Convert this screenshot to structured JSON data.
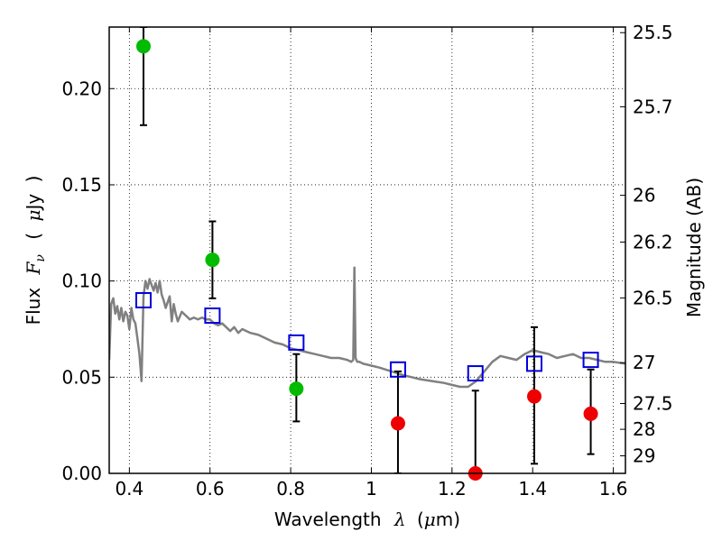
{
  "chart_data": {
    "type": "scatter",
    "title": "",
    "xlabel": {
      "text": "Wavelength",
      "symbol": "λ",
      "unit_prefix": "(",
      "unit_mu": "μ",
      "unit_suffix": "m)"
    },
    "ylabel_left": {
      "text": "Flux",
      "symbol": "F",
      "subscript": "ν",
      "paren_open": "(",
      "unit_mu": "μ",
      "unit_rest": "Jy",
      "paren_close": ")"
    },
    "ylabel_right": "Magnitude (AB)",
    "xlim": [
      0.35,
      1.63
    ],
    "ylim": [
      0.0,
      0.232
    ],
    "x_ticks": [
      {
        "value": 0.4,
        "label": "0.4"
      },
      {
        "value": 0.6,
        "label": "0.6"
      },
      {
        "value": 0.8,
        "label": "0.8"
      },
      {
        "value": 1.0,
        "label": "1"
      },
      {
        "value": 1.2,
        "label": "1.2"
      },
      {
        "value": 1.4,
        "label": "1.4"
      },
      {
        "value": 1.6,
        "label": "1.6"
      }
    ],
    "y_ticks": [
      {
        "value": 0.0,
        "label": "0.00"
      },
      {
        "value": 0.05,
        "label": "0.05"
      },
      {
        "value": 0.1,
        "label": "0.10"
      },
      {
        "value": 0.15,
        "label": "0.15"
      },
      {
        "value": 0.2,
        "label": "0.20"
      }
    ],
    "mag_ticks": [
      {
        "mag": 25.5,
        "label": "25.5"
      },
      {
        "mag": 25.7,
        "label": "25.7"
      },
      {
        "mag": 26.0,
        "label": "26"
      },
      {
        "mag": 26.2,
        "label": "26.2"
      },
      {
        "mag": 26.5,
        "label": "26.5"
      },
      {
        "mag": 27.0,
        "label": "27"
      },
      {
        "mag": 27.5,
        "label": "27.5"
      },
      {
        "mag": 28.0,
        "label": "28"
      },
      {
        "mag": 29.0,
        "label": "29"
      }
    ],
    "grid": true,
    "colors": {
      "detection": "#00bb00",
      "upper_limit": "#ee0000",
      "model_photometry": "#0000dd",
      "sed": "#808080",
      "errorbar": "#000000"
    },
    "series": [
      {
        "marker": "circle",
        "color_key": "detection",
        "points": [
          {
            "x": 0.435,
            "y": 0.222,
            "ylo": 0.181,
            "yhi": 0.232
          },
          {
            "x": 0.606,
            "y": 0.111,
            "ylo": 0.091,
            "yhi": 0.131
          },
          {
            "x": 0.814,
            "y": 0.044,
            "ylo": 0.027,
            "yhi": 0.062
          }
        ]
      },
      {
        "marker": "circle",
        "color_key": "upper_limit",
        "points": [
          {
            "x": 1.066,
            "y": 0.026,
            "ylo": 0.0,
            "yhi": 0.053
          },
          {
            "x": 1.258,
            "y": 0.0,
            "ylo": 0.0,
            "yhi": 0.043
          },
          {
            "x": 1.404,
            "y": 0.04,
            "ylo": 0.005,
            "yhi": 0.076
          },
          {
            "x": 1.544,
            "y": 0.031,
            "ylo": 0.01,
            "yhi": 0.054
          }
        ]
      },
      {
        "marker": "open-square",
        "color_key": "model_photometry",
        "points": [
          {
            "x": 0.435,
            "y": 0.09
          },
          {
            "x": 0.606,
            "y": 0.082
          },
          {
            "x": 0.814,
            "y": 0.068
          },
          {
            "x": 1.066,
            "y": 0.054
          },
          {
            "x": 1.258,
            "y": 0.052
          },
          {
            "x": 1.404,
            "y": 0.057
          },
          {
            "x": 1.544,
            "y": 0.059
          }
        ]
      },
      {
        "marker": "line",
        "color_key": "sed",
        "x": [
          0.35,
          0.355,
          0.36,
          0.365,
          0.37,
          0.375,
          0.38,
          0.385,
          0.39,
          0.395,
          0.4,
          0.405,
          0.41,
          0.415,
          0.42,
          0.425,
          0.43,
          0.435,
          0.44,
          0.445,
          0.45,
          0.455,
          0.46,
          0.465,
          0.47,
          0.475,
          0.48,
          0.485,
          0.49,
          0.5,
          0.505,
          0.51,
          0.515,
          0.52,
          0.53,
          0.54,
          0.55,
          0.56,
          0.57,
          0.58,
          0.59,
          0.6,
          0.61,
          0.62,
          0.63,
          0.64,
          0.65,
          0.66,
          0.67,
          0.68,
          0.69,
          0.7,
          0.72,
          0.74,
          0.76,
          0.78,
          0.8,
          0.82,
          0.84,
          0.86,
          0.88,
          0.9,
          0.92,
          0.94,
          0.95,
          0.955,
          0.958,
          0.961,
          0.965,
          0.97,
          0.98,
          1.0,
          1.02,
          1.05,
          1.08,
          1.1,
          1.12,
          1.15,
          1.18,
          1.2,
          1.22,
          1.24,
          1.26,
          1.28,
          1.3,
          1.32,
          1.34,
          1.36,
          1.38,
          1.4,
          1.42,
          1.44,
          1.46,
          1.48,
          1.5,
          1.52,
          1.54,
          1.56,
          1.58,
          1.6,
          1.63
        ],
        "y": [
          0.059,
          0.088,
          0.091,
          0.083,
          0.087,
          0.08,
          0.086,
          0.079,
          0.084,
          0.082,
          0.075,
          0.086,
          0.08,
          0.078,
          0.07,
          0.062,
          0.048,
          0.092,
          0.1,
          0.096,
          0.101,
          0.098,
          0.095,
          0.099,
          0.094,
          0.1,
          0.093,
          0.09,
          0.086,
          0.092,
          0.079,
          0.088,
          0.083,
          0.079,
          0.084,
          0.082,
          0.08,
          0.081,
          0.08,
          0.081,
          0.08,
          0.08,
          0.078,
          0.077,
          0.078,
          0.076,
          0.074,
          0.076,
          0.073,
          0.075,
          0.074,
          0.073,
          0.072,
          0.07,
          0.068,
          0.067,
          0.065,
          0.064,
          0.063,
          0.062,
          0.061,
          0.06,
          0.06,
          0.059,
          0.058,
          0.059,
          0.107,
          0.06,
          0.058,
          0.058,
          0.057,
          0.056,
          0.055,
          0.053,
          0.051,
          0.05,
          0.049,
          0.048,
          0.047,
          0.046,
          0.045,
          0.045,
          0.048,
          0.053,
          0.058,
          0.061,
          0.06,
          0.059,
          0.062,
          0.064,
          0.063,
          0.062,
          0.06,
          0.061,
          0.062,
          0.06,
          0.06,
          0.059,
          0.058,
          0.058,
          0.057
        ]
      }
    ]
  }
}
